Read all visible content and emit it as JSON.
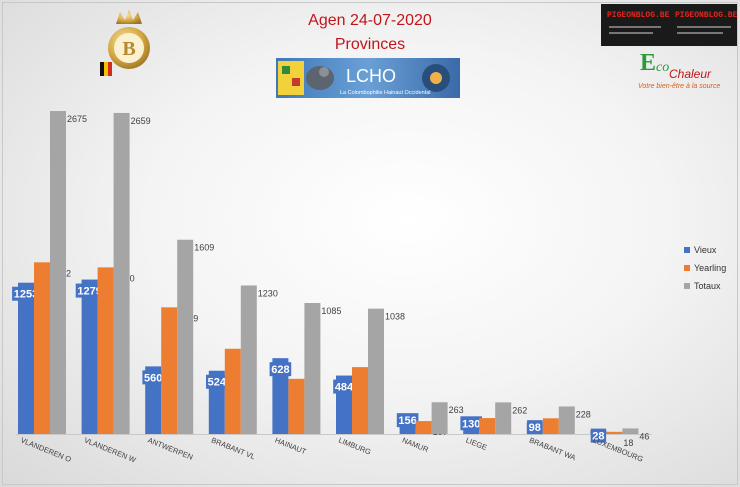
{
  "header": {
    "title": "Agen 24-07-2020",
    "subtitle": "Provinces"
  },
  "logos": {
    "lcho_text": "LCHO",
    "lcho_caption": "La Colombophilie Hainaut Occidental",
    "b_letter": "B",
    "pigeon_ad_text_1": "PIGEONBLOG.BE",
    "pigeon_ad_text_2": "PIGEONBLOG.BE",
    "eco_letter": "E",
    "eco_word": "co",
    "eco_chaleur": "Chaleur",
    "eco_tagline": "Votre bien-être à la source"
  },
  "colors": {
    "vieux": "#4472c4",
    "yearling": "#ed7d31",
    "totaux": "#a5a5a5",
    "title": "#c0161a"
  },
  "chart_data": {
    "type": "bar",
    "title": "Agen 24-07-2020",
    "subtitle": "Provinces",
    "categories": [
      "VLANDEREN O",
      "VLANDEREN W",
      "ANTWERPEN",
      "BRABANT VL",
      "HAINAUT",
      "LIMBURG",
      "NAMUR",
      "LIEGE",
      "BRABANT WA",
      "LUXEMBOURG"
    ],
    "series": [
      {
        "name": "Vieux",
        "values": [
          1253,
          1279,
          560,
          524,
          628,
          484,
          156,
          130,
          98,
          28
        ]
      },
      {
        "name": "Yearling",
        "values": [
          1422,
          1380,
          1049,
          706,
          457,
          554,
          107,
          132,
          130,
          18
        ]
      },
      {
        "name": "Totaux",
        "values": [
          2675,
          2659,
          1609,
          1230,
          1085,
          1038,
          263,
          262,
          228,
          46
        ]
      }
    ],
    "ylim": [
      0,
      2700
    ],
    "grid": false,
    "legend": "right",
    "data_labels": true
  }
}
